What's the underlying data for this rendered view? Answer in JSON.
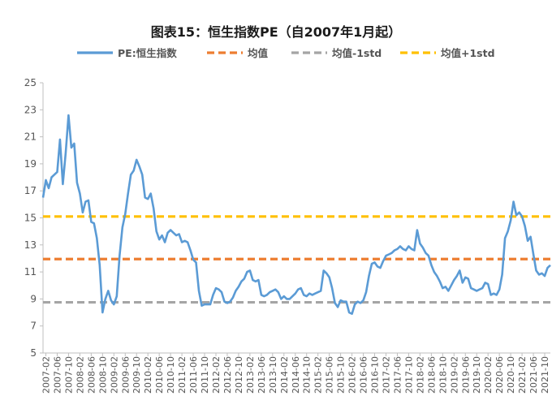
{
  "chart_data": {
    "type": "line",
    "title": "图表15：恒生指数PE（自2007年1月起）",
    "xlabel": "",
    "ylabel": "",
    "ylim": [
      5,
      25
    ],
    "yticks": [
      5,
      7,
      9,
      11,
      13,
      15,
      17,
      19,
      21,
      23,
      25
    ],
    "grid": false,
    "legend_position": "top",
    "x_tick_labels": [
      "2007-02",
      "2007-06",
      "2007-10",
      "2008-02",
      "2008-06",
      "2008-10",
      "2009-02",
      "2009-06",
      "2009-10",
      "2010-02",
      "2010-06",
      "2010-10",
      "2011-02",
      "2011-06",
      "2011-10",
      "2012-02",
      "2012-06",
      "2012-10",
      "2013-02",
      "2013-06",
      "2013-10",
      "2014-02",
      "2014-06",
      "2014-10",
      "2015-02",
      "2015-06",
      "2015-10",
      "2016-02",
      "2016-06",
      "2016-10",
      "2017-02",
      "2017-06",
      "2017-10",
      "2018-02",
      "2018-06",
      "2018-10",
      "2019-02",
      "2019-06",
      "2019-10",
      "2020-02",
      "2020-06",
      "2020-10",
      "2021-02",
      "2021-06",
      "2021-10"
    ],
    "series": [
      {
        "name": "PE:恒生指数",
        "color": "#5B9BD5",
        "style": "solid",
        "points": [
          [
            "2007-01",
            16.5
          ],
          [
            "2007-02",
            17.8
          ],
          [
            "2007-03",
            17.2
          ],
          [
            "2007-04",
            18.0
          ],
          [
            "2007-05",
            18.2
          ],
          [
            "2007-06",
            18.4
          ],
          [
            "2007-07",
            20.8
          ],
          [
            "2007-08",
            17.5
          ],
          [
            "2007-09",
            19.8
          ],
          [
            "2007-10",
            22.6
          ],
          [
            "2007-11",
            20.2
          ],
          [
            "2007-12",
            20.5
          ],
          [
            "2008-01",
            17.6
          ],
          [
            "2008-02",
            16.8
          ],
          [
            "2008-03",
            15.4
          ],
          [
            "2008-04",
            16.2
          ],
          [
            "2008-05",
            16.3
          ],
          [
            "2008-06",
            14.7
          ],
          [
            "2008-07",
            14.6
          ],
          [
            "2008-08",
            13.5
          ],
          [
            "2008-09",
            11.5
          ],
          [
            "2008-10",
            8.0
          ],
          [
            "2008-11",
            9.0
          ],
          [
            "2008-12",
            9.6
          ],
          [
            "2009-01",
            8.9
          ],
          [
            "2009-02",
            8.6
          ],
          [
            "2009-03",
            9.2
          ],
          [
            "2009-04",
            12.2
          ],
          [
            "2009-05",
            14.3
          ],
          [
            "2009-06",
            15.3
          ],
          [
            "2009-07",
            16.8
          ],
          [
            "2009-08",
            18.2
          ],
          [
            "2009-09",
            18.5
          ],
          [
            "2009-10",
            19.3
          ],
          [
            "2009-11",
            18.8
          ],
          [
            "2009-12",
            18.2
          ],
          [
            "2010-01",
            16.5
          ],
          [
            "2010-02",
            16.4
          ],
          [
            "2010-03",
            16.8
          ],
          [
            "2010-04",
            15.7
          ],
          [
            "2010-05",
            14.0
          ],
          [
            "2010-06",
            13.4
          ],
          [
            "2010-07",
            13.7
          ],
          [
            "2010-08",
            13.2
          ],
          [
            "2010-09",
            13.9
          ],
          [
            "2010-10",
            14.1
          ],
          [
            "2010-11",
            13.9
          ],
          [
            "2010-12",
            13.7
          ],
          [
            "2011-01",
            13.8
          ],
          [
            "2011-02",
            13.2
          ],
          [
            "2011-03",
            13.3
          ],
          [
            "2011-04",
            13.2
          ],
          [
            "2011-05",
            12.6
          ],
          [
            "2011-06",
            11.9
          ],
          [
            "2011-07",
            11.7
          ],
          [
            "2011-08",
            9.6
          ],
          [
            "2011-09",
            8.5
          ],
          [
            "2011-10",
            8.6
          ],
          [
            "2011-11",
            8.6
          ],
          [
            "2011-12",
            8.6
          ],
          [
            "2012-01",
            9.3
          ],
          [
            "2012-02",
            9.8
          ],
          [
            "2012-03",
            9.7
          ],
          [
            "2012-04",
            9.5
          ],
          [
            "2012-05",
            8.8
          ],
          [
            "2012-06",
            8.7
          ],
          [
            "2012-07",
            8.8
          ],
          [
            "2012-08",
            9.1
          ],
          [
            "2012-09",
            9.6
          ],
          [
            "2012-10",
            9.9
          ],
          [
            "2012-11",
            10.3
          ],
          [
            "2012-12",
            10.5
          ],
          [
            "2013-01",
            11.0
          ],
          [
            "2013-02",
            11.1
          ],
          [
            "2013-03",
            10.4
          ],
          [
            "2013-04",
            10.3
          ],
          [
            "2013-05",
            10.4
          ],
          [
            "2013-06",
            9.3
          ],
          [
            "2013-07",
            9.2
          ],
          [
            "2013-08",
            9.3
          ],
          [
            "2013-09",
            9.5
          ],
          [
            "2013-10",
            9.6
          ],
          [
            "2013-11",
            9.7
          ],
          [
            "2013-12",
            9.5
          ],
          [
            "2014-01",
            9.0
          ],
          [
            "2014-02",
            9.2
          ],
          [
            "2014-03",
            9.0
          ],
          [
            "2014-04",
            9.0
          ],
          [
            "2014-05",
            9.2
          ],
          [
            "2014-06",
            9.4
          ],
          [
            "2014-07",
            9.7
          ],
          [
            "2014-08",
            9.8
          ],
          [
            "2014-09",
            9.3
          ],
          [
            "2014-10",
            9.2
          ],
          [
            "2014-11",
            9.4
          ],
          [
            "2014-12",
            9.3
          ],
          [
            "2015-01",
            9.4
          ],
          [
            "2015-02",
            9.5
          ],
          [
            "2015-03",
            9.6
          ],
          [
            "2015-04",
            11.1
          ],
          [
            "2015-05",
            10.9
          ],
          [
            "2015-06",
            10.6
          ],
          [
            "2015-07",
            9.8
          ],
          [
            "2015-08",
            8.7
          ],
          [
            "2015-09",
            8.4
          ],
          [
            "2015-10",
            8.9
          ],
          [
            "2015-11",
            8.8
          ],
          [
            "2015-12",
            8.8
          ],
          [
            "2016-01",
            8.0
          ],
          [
            "2016-02",
            7.9
          ],
          [
            "2016-03",
            8.6
          ],
          [
            "2016-04",
            8.8
          ],
          [
            "2016-05",
            8.7
          ],
          [
            "2016-06",
            8.9
          ],
          [
            "2016-07",
            9.5
          ],
          [
            "2016-08",
            10.7
          ],
          [
            "2016-09",
            11.6
          ],
          [
            "2016-10",
            11.7
          ],
          [
            "2016-11",
            11.4
          ],
          [
            "2016-12",
            11.3
          ],
          [
            "2017-01",
            11.8
          ],
          [
            "2017-02",
            12.2
          ],
          [
            "2017-03",
            12.3
          ],
          [
            "2017-04",
            12.4
          ],
          [
            "2017-05",
            12.6
          ],
          [
            "2017-06",
            12.7
          ],
          [
            "2017-07",
            12.9
          ],
          [
            "2017-08",
            12.7
          ],
          [
            "2017-09",
            12.6
          ],
          [
            "2017-10",
            12.9
          ],
          [
            "2017-11",
            12.7
          ],
          [
            "2017-12",
            12.6
          ],
          [
            "2018-01",
            14.1
          ],
          [
            "2018-02",
            13.1
          ],
          [
            "2018-03",
            12.8
          ],
          [
            "2018-04",
            12.4
          ],
          [
            "2018-05",
            12.2
          ],
          [
            "2018-06",
            11.5
          ],
          [
            "2018-07",
            11.0
          ],
          [
            "2018-08",
            10.7
          ],
          [
            "2018-09",
            10.3
          ],
          [
            "2018-10",
            9.8
          ],
          [
            "2018-11",
            9.9
          ],
          [
            "2018-12",
            9.6
          ],
          [
            "2019-01",
            10.0
          ],
          [
            "2019-02",
            10.4
          ],
          [
            "2019-03",
            10.7
          ],
          [
            "2019-04",
            11.1
          ],
          [
            "2019-05",
            10.2
          ],
          [
            "2019-06",
            10.6
          ],
          [
            "2019-07",
            10.5
          ],
          [
            "2019-08",
            9.8
          ],
          [
            "2019-09",
            9.7
          ],
          [
            "2019-10",
            9.6
          ],
          [
            "2019-11",
            9.7
          ],
          [
            "2019-12",
            9.8
          ],
          [
            "2020-01",
            10.2
          ],
          [
            "2020-02",
            10.1
          ],
          [
            "2020-03",
            9.3
          ],
          [
            "2020-04",
            9.4
          ],
          [
            "2020-05",
            9.3
          ],
          [
            "2020-06",
            9.7
          ],
          [
            "2020-07",
            10.8
          ],
          [
            "2020-08",
            13.5
          ],
          [
            "2020-09",
            14.0
          ],
          [
            "2020-10",
            14.8
          ],
          [
            "2020-11",
            16.2
          ],
          [
            "2020-12",
            15.2
          ],
          [
            "2021-01",
            15.4
          ],
          [
            "2021-02",
            15.1
          ],
          [
            "2021-03",
            14.4
          ],
          [
            "2021-04",
            13.3
          ],
          [
            "2021-05",
            13.6
          ],
          [
            "2021-06",
            12.3
          ],
          [
            "2021-07",
            11.1
          ],
          [
            "2021-08",
            10.8
          ],
          [
            "2021-09",
            10.9
          ],
          [
            "2021-10",
            10.7
          ],
          [
            "2021-11",
            11.3
          ],
          [
            "2021-12",
            11.5
          ]
        ]
      },
      {
        "name": "均值",
        "color": "#ED7D31",
        "style": "dashed",
        "value": 11.95
      },
      {
        "name": "均值-1std",
        "color": "#A5A5A5",
        "style": "dashed",
        "value": 8.75
      },
      {
        "name": "均值+1std",
        "color": "#FFC000",
        "style": "dashed",
        "value": 15.1
      }
    ]
  }
}
